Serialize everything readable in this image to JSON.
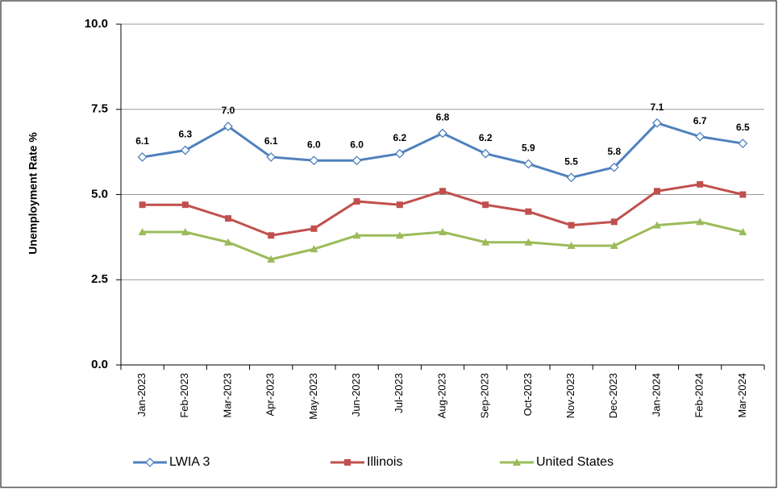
{
  "chart_data": {
    "type": "line",
    "y_label": "Unemployment Rate %",
    "categories": [
      "Jan-2023",
      "Feb-2023",
      "Mar-2023",
      "Apr-2023",
      "May-2023",
      "Jun-2023",
      "Jul-2023",
      "Aug-2023",
      "Sep-2023",
      "Oct-2023",
      "Nov-2023",
      "Dec-2023",
      "Jan-2024",
      "Feb-2024",
      "Mar-2024"
    ],
    "series": [
      {
        "name": "LWIA 3",
        "color": "#4f81bd",
        "marker": "diamond",
        "values": [
          6.1,
          6.3,
          7.0,
          6.1,
          6.0,
          6.0,
          6.2,
          6.8,
          6.2,
          5.9,
          5.5,
          5.8,
          7.1,
          6.7,
          6.5
        ],
        "value_labels": [
          "6.1",
          "6.3",
          "7.0",
          "6.1",
          "6.0",
          "6.0",
          "6.2",
          "6.8",
          "6.2",
          "5.9",
          "5.5",
          "5.8",
          "7.1",
          "6.7",
          "6.5"
        ]
      },
      {
        "name": "Illinois",
        "color": "#c0504d",
        "marker": "square",
        "values": [
          4.7,
          4.7,
          4.3,
          3.8,
          4.0,
          4.8,
          4.7,
          5.1,
          4.7,
          4.5,
          4.1,
          4.2,
          5.1,
          5.3,
          5.0
        ]
      },
      {
        "name": "United States",
        "color": "#9bbb59",
        "marker": "triangle",
        "values": [
          3.9,
          3.9,
          3.6,
          3.1,
          3.4,
          3.8,
          3.8,
          3.9,
          3.6,
          3.6,
          3.5,
          3.5,
          4.1,
          4.2,
          3.9
        ]
      }
    ],
    "ylim": [
      0,
      10
    ],
    "yticks": [
      {
        "value": 0,
        "label": "0.0"
      },
      2.5,
      {
        "value": 5,
        "label": "5.0"
      },
      7.5,
      {
        "value": 10,
        "label": "10.0"
      }
    ],
    "grid": true
  }
}
